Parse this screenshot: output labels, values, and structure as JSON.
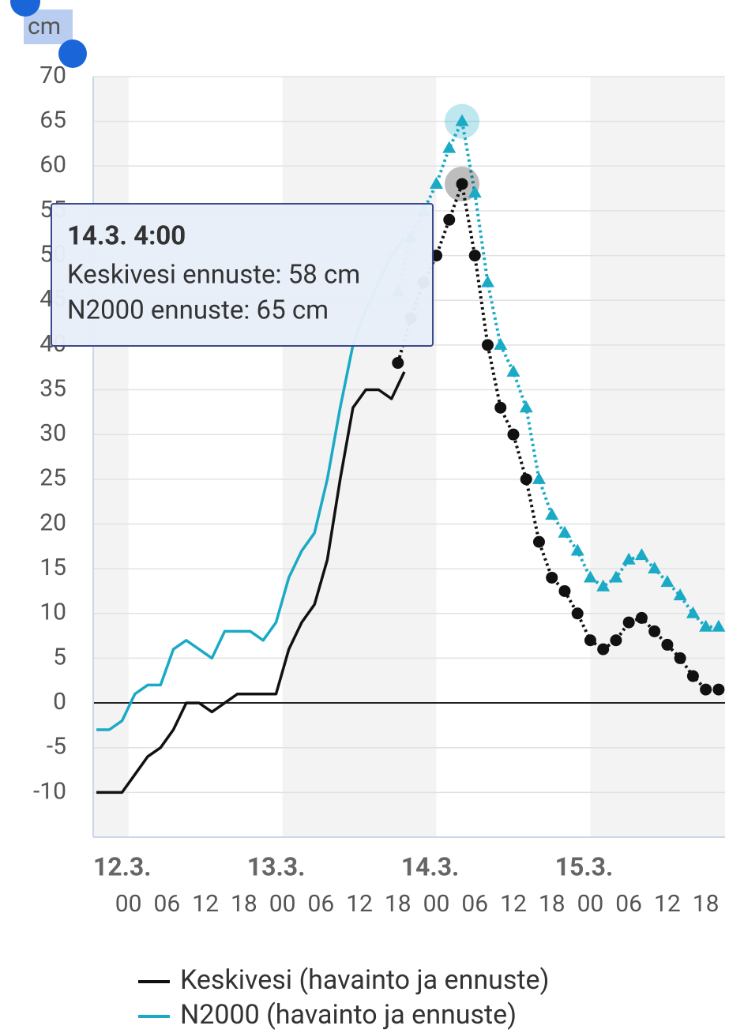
{
  "chart_data": {
    "type": "line",
    "y_label": "cm",
    "xlim": [
      -5.5,
      93
    ],
    "ylim": [
      -15,
      70
    ],
    "yticks": [
      70,
      65,
      60,
      55,
      50,
      45,
      40,
      35,
      30,
      25,
      20,
      15,
      10,
      5,
      0,
      -5,
      -10
    ],
    "xticks": [
      {
        "value": 0,
        "label": "00"
      },
      {
        "value": 6,
        "label": "06"
      },
      12,
      18,
      {
        "value": 24,
        "label": "00"
      },
      {
        "value": 30,
        "label": "06"
      },
      {
        "value": 36,
        "label": "12"
      },
      {
        "value": 42,
        "label": "18"
      },
      {
        "value": 48,
        "label": "00"
      },
      {
        "value": 54,
        "label": "06"
      },
      {
        "value": 60,
        "label": "12"
      },
      {
        "value": 66,
        "label": "18"
      },
      {
        "value": 72,
        "label": "00"
      },
      {
        "value": 78,
        "label": "06"
      },
      {
        "value": 84,
        "label": "12"
      },
      {
        "value": 90,
        "label": "18"
      }
    ],
    "date_ticks": [
      {
        "value": 0,
        "label": "12.3."
      },
      {
        "value": 24,
        "label": "13.3."
      },
      {
        "value": 48,
        "label": "14.3."
      },
      {
        "value": 72,
        "label": "15.3."
      }
    ],
    "grid": true,
    "x": [
      -5,
      -3,
      -1,
      1,
      3,
      5,
      7,
      9,
      11,
      13,
      15,
      17,
      19,
      21,
      23,
      25,
      27,
      29,
      31,
      33,
      35,
      37,
      39,
      41,
      43
    ],
    "forecast_x": [
      42,
      44,
      46,
      48,
      50,
      52,
      54,
      56,
      58,
      60,
      62,
      64,
      66,
      68,
      70,
      72,
      74,
      76,
      78,
      80,
      82,
      84,
      86,
      88,
      90,
      92
    ],
    "series": [
      {
        "name": "Keskivesi (havainto ja ennuste)",
        "color": "#111111",
        "marker": "circle",
        "values": [
          -10,
          -10,
          -10,
          -8,
          -6,
          -5,
          -3,
          0,
          0,
          -1,
          0,
          1,
          1,
          1,
          1,
          6,
          9,
          11,
          16,
          25,
          33,
          35,
          35,
          34,
          37
        ],
        "forecast_values": [
          38,
          43,
          47,
          50,
          54,
          58,
          50,
          40,
          33,
          30,
          25,
          18,
          14,
          12.5,
          10,
          7,
          6,
          7,
          9,
          9.5,
          8,
          6.5,
          5,
          3,
          1.5,
          1.5
        ]
      },
      {
        "name": "N2000 (havainto ja ennuste)",
        "color": "#1aaac6",
        "marker": "triangle",
        "values": [
          -3,
          -3,
          -2,
          1,
          2,
          2,
          6,
          7,
          6,
          5,
          8,
          8,
          8,
          7,
          9,
          14,
          17,
          19,
          25,
          33,
          40,
          44,
          47,
          50,
          52
        ],
        "forecast_values": [
          46,
          52,
          55,
          58,
          62,
          65,
          57,
          47,
          40,
          37,
          33,
          25,
          21,
          19,
          17,
          14,
          13,
          14,
          16,
          16.5,
          15,
          13.5,
          12,
          10,
          8.5,
          8.5
        ]
      }
    ],
    "tooltip": {
      "x": 52,
      "title": "14.3. 4:00",
      "lines": [
        "Keskivesi ennuste: 58 cm",
        "N2000 ennuste: 65 cm"
      ]
    }
  }
}
